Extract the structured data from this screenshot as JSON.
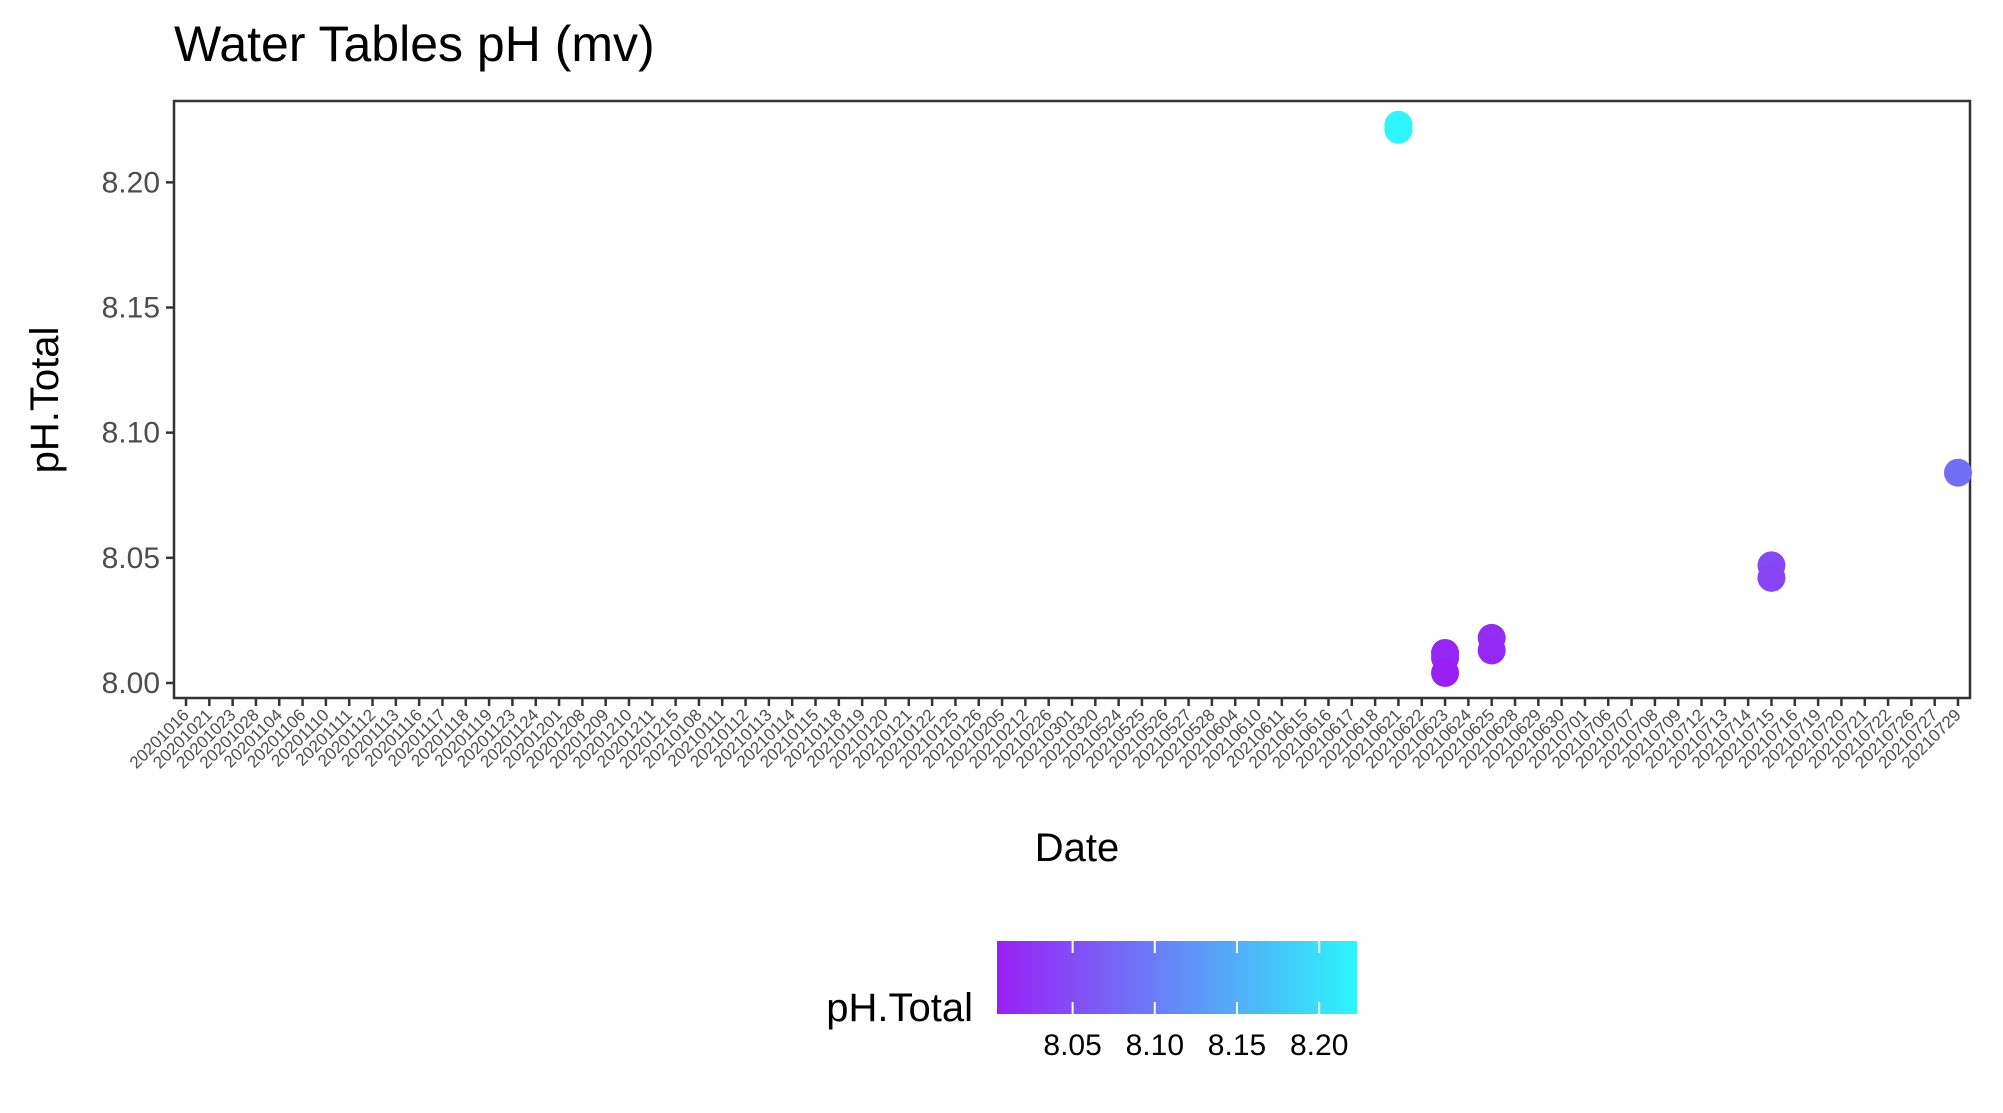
{
  "chart_data": {
    "type": "scatter",
    "title": "Water Tables pH (mv)",
    "xlabel": "Date",
    "ylabel": "pH.Total",
    "ylim": [
      7.994,
      8.2325
    ],
    "yticks": [
      "8.00",
      "8.05",
      "8.10",
      "8.15",
      "8.20"
    ],
    "x_categories": [
      "20201016",
      "20201021",
      "20201023",
      "20201028",
      "20201104",
      "20201106",
      "20201110",
      "20201111",
      "20201112",
      "20201113",
      "20201116",
      "20201117",
      "20201118",
      "20201119",
      "20201123",
      "20201124",
      "20201201",
      "20201208",
      "20201209",
      "20201210",
      "20201211",
      "20201215",
      "20210108",
      "20210111",
      "20210112",
      "20210113",
      "20210114",
      "20210115",
      "20210118",
      "20210119",
      "20210120",
      "20210121",
      "20210122",
      "20210125",
      "20210126",
      "20210205",
      "20210212",
      "20210226",
      "20210301",
      "20210320",
      "20210524",
      "20210525",
      "20210526",
      "20210527",
      "20210528",
      "20210604",
      "20210610",
      "20210611",
      "20210615",
      "20210616",
      "20210617",
      "20210618",
      "20210621",
      "20210622",
      "20210623",
      "20210624",
      "20210625",
      "20210628",
      "20210629",
      "20210630",
      "20210701",
      "20210706",
      "20210707",
      "20210708",
      "20210709",
      "20210712",
      "20210713",
      "20210714",
      "20210715",
      "20210716",
      "20210719",
      "20210720",
      "20210721",
      "20210722",
      "20210726",
      "20210727",
      "20210729"
    ],
    "points": [
      {
        "x": "20210621",
        "y": 8.223
      },
      {
        "x": "20210621",
        "y": 8.221
      },
      {
        "x": "20210623",
        "y": 8.012
      },
      {
        "x": "20210623",
        "y": 8.01
      },
      {
        "x": "20210623",
        "y": 8.004
      },
      {
        "x": "20210625",
        "y": 8.018
      },
      {
        "x": "20210625",
        "y": 8.013
      },
      {
        "x": "20210715",
        "y": 8.047
      },
      {
        "x": "20210715",
        "y": 8.042
      },
      {
        "x": "20210729",
        "y": 8.084
      }
    ],
    "colorbar": {
      "title": "pH.Total",
      "low_color": "#9a1ff3",
      "high_color": "#2df6fc",
      "range": [
        8.004,
        8.223
      ],
      "ticks": [
        "8.05",
        "8.10",
        "8.15",
        "8.20"
      ]
    },
    "grid": false,
    "legend_position": "bottom"
  }
}
